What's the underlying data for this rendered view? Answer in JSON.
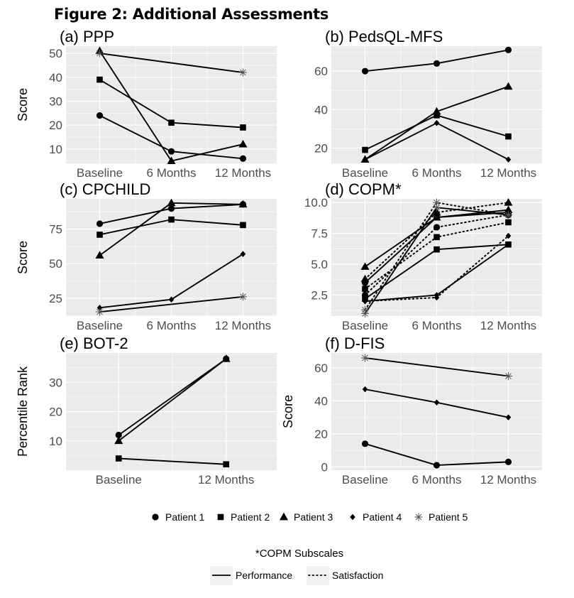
{
  "figure_title": "Figure 2: Additional Assessments",
  "legend": {
    "patients": [
      {
        "label": "Patient 1",
        "shape": "circle"
      },
      {
        "label": "Patient 2",
        "shape": "square"
      },
      {
        "label": "Patient 3",
        "shape": "triangle"
      },
      {
        "label": "Patient 4",
        "shape": "diamond"
      },
      {
        "label": "Patient 5",
        "shape": "asterisk"
      }
    ],
    "subscale_title": "*COPM Subscales",
    "subscales": [
      {
        "label": "Performance",
        "style": "solid"
      },
      {
        "label": "Satisfaction",
        "style": "dotted"
      }
    ]
  },
  "colors": {
    "panel_bg": "#ebebeb",
    "grid": "#ffffff",
    "ink": "#000000",
    "tick_text": "#4d4d4d"
  },
  "chart_data": [
    {
      "id": "a",
      "title": "(a) PPP",
      "type": "line",
      "ylabel": "Score",
      "x": [
        "Baseline",
        "6 Months",
        "12 Months"
      ],
      "yticks": [
        10,
        20,
        30,
        40,
        50
      ],
      "ylim": [
        4,
        53
      ],
      "minor_grid": true,
      "series": [
        {
          "name": "Patient 1",
          "shape": "circle",
          "points": [
            [
              "Baseline",
              24
            ],
            [
              "6 Months",
              9
            ],
            [
              "12 Months",
              6
            ]
          ]
        },
        {
          "name": "Patient 2",
          "shape": "square",
          "points": [
            [
              "Baseline",
              39
            ],
            [
              "6 Months",
              21
            ],
            [
              "12 Months",
              19
            ]
          ]
        },
        {
          "name": "Patient 3",
          "shape": "triangle",
          "points": [
            [
              "Baseline",
              51
            ],
            [
              "6 Months",
              5
            ],
            [
              "12 Months",
              12
            ]
          ]
        },
        {
          "name": "Patient 5",
          "shape": "asterisk",
          "points": [
            [
              "Baseline",
              50
            ],
            [
              "12 Months",
              42
            ]
          ]
        }
      ]
    },
    {
      "id": "b",
      "title": "(b) PedsQL-MFS",
      "type": "line",
      "ylabel": "",
      "x": [
        "Baseline",
        "6 Months",
        "12 Months"
      ],
      "yticks": [
        20,
        40,
        60
      ],
      "ylim": [
        12,
        73
      ],
      "minor_grid": true,
      "series": [
        {
          "name": "Patient 1",
          "shape": "circle",
          "points": [
            [
              "Baseline",
              60
            ],
            [
              "6 Months",
              64
            ],
            [
              "12 Months",
              71
            ]
          ]
        },
        {
          "name": "Patient 2",
          "shape": "square",
          "points": [
            [
              "Baseline",
              19
            ],
            [
              "6 Months",
              37
            ],
            [
              "12 Months",
              26
            ]
          ]
        },
        {
          "name": "Patient 3",
          "shape": "triangle",
          "points": [
            [
              "Baseline",
              14
            ],
            [
              "6 Months",
              39
            ],
            [
              "12 Months",
              52
            ]
          ]
        },
        {
          "name": "Patient 4",
          "shape": "diamond",
          "points": [
            [
              "Baseline",
              14
            ],
            [
              "6 Months",
              33
            ],
            [
              "12 Months",
              14
            ]
          ]
        }
      ]
    },
    {
      "id": "c",
      "title": "(c) CPCHILD",
      "type": "line",
      "ylabel": "Score",
      "x": [
        "Baseline",
        "6 Months",
        "12 Months"
      ],
      "yticks": [
        25,
        50,
        75
      ],
      "ylim": [
        12,
        97
      ],
      "minor_grid": true,
      "series": [
        {
          "name": "Patient 1",
          "shape": "circle",
          "points": [
            [
              "Baseline",
              79
            ],
            [
              "6 Months",
              90
            ],
            [
              "12 Months",
              93
            ]
          ]
        },
        {
          "name": "Patient 2",
          "shape": "square",
          "points": [
            [
              "Baseline",
              71
            ],
            [
              "6 Months",
              82
            ],
            [
              "12 Months",
              78
            ]
          ]
        },
        {
          "name": "Patient 3",
          "shape": "triangle",
          "points": [
            [
              "Baseline",
              56
            ],
            [
              "6 Months",
              94
            ],
            [
              "12 Months",
              93
            ]
          ]
        },
        {
          "name": "Patient 4",
          "shape": "diamond",
          "points": [
            [
              "Baseline",
              18
            ],
            [
              "6 Months",
              24
            ],
            [
              "12 Months",
              57
            ]
          ]
        },
        {
          "name": "Patient 5",
          "shape": "asterisk",
          "points": [
            [
              "Baseline",
              15
            ],
            [
              "12 Months",
              26
            ]
          ]
        }
      ]
    },
    {
      "id": "d",
      "title": "(d) COPM*",
      "type": "line",
      "ylabel": "",
      "x": [
        "Baseline",
        "6 Months",
        "12 Months"
      ],
      "yticks": [
        2.5,
        5.0,
        7.5,
        10.0
      ],
      "ytick_labels": [
        "2.5",
        "5.0",
        "7.5",
        "10.0"
      ],
      "ylim": [
        0.8,
        10.3
      ],
      "minor_grid": true,
      "series": [
        {
          "name": "Patient 1",
          "shape": "circle",
          "style": "solid",
          "points": [
            [
              "Baseline",
              3.5
            ],
            [
              "6 Months",
              8.8
            ],
            [
              "12 Months",
              9.2
            ]
          ]
        },
        {
          "name": "Patient 1",
          "shape": "circle",
          "style": "dotted",
          "points": [
            [
              "Baseline",
              2.5
            ],
            [
              "6 Months",
              8.0
            ],
            [
              "12 Months",
              9.0
            ]
          ]
        },
        {
          "name": "Patient 2",
          "shape": "square",
          "style": "solid",
          "points": [
            [
              "Baseline",
              2.2
            ],
            [
              "6 Months",
              6.2
            ],
            [
              "12 Months",
              6.6
            ]
          ]
        },
        {
          "name": "Patient 2",
          "shape": "square",
          "style": "dotted",
          "points": [
            [
              "Baseline",
              3.0
            ],
            [
              "6 Months",
              7.2
            ],
            [
              "12 Months",
              8.4
            ]
          ]
        },
        {
          "name": "Patient 3",
          "shape": "triangle",
          "style": "solid",
          "points": [
            [
              "Baseline",
              4.8
            ],
            [
              "6 Months",
              8.8
            ],
            [
              "12 Months",
              9.4
            ]
          ]
        },
        {
          "name": "Patient 3",
          "shape": "triangle",
          "style": "dotted",
          "points": [
            [
              "Baseline",
              3.8
            ],
            [
              "6 Months",
              9.2
            ],
            [
              "12 Months",
              10.0
            ]
          ]
        },
        {
          "name": "Patient 4",
          "shape": "diamond",
          "style": "solid",
          "points": [
            [
              "Baseline",
              2.0
            ],
            [
              "6 Months",
              2.5
            ],
            [
              "12 Months",
              6.6
            ]
          ]
        },
        {
          "name": "Patient 4",
          "shape": "diamond",
          "style": "dotted",
          "points": [
            [
              "Baseline",
              2.0
            ],
            [
              "6 Months",
              2.3
            ],
            [
              "12 Months",
              7.3
            ]
          ]
        },
        {
          "name": "Patient 5",
          "shape": "asterisk",
          "style": "solid",
          "points": [
            [
              "Baseline",
              1.0
            ],
            [
              "6 Months",
              9.6
            ],
            [
              "12 Months",
              9.0
            ]
          ]
        },
        {
          "name": "Patient 5",
          "shape": "asterisk",
          "style": "dotted",
          "points": [
            [
              "Baseline",
              1.3
            ],
            [
              "6 Months",
              10.0
            ],
            [
              "12 Months",
              9.0
            ]
          ]
        }
      ]
    },
    {
      "id": "e",
      "title": "(e) BOT-2",
      "type": "line",
      "ylabel": "Percentile Rank",
      "x": [
        "Baseline",
        "12 Months"
      ],
      "yticks": [
        10,
        20,
        30
      ],
      "ylim": [
        0,
        40
      ],
      "minor_grid": true,
      "series": [
        {
          "name": "Patient 1",
          "shape": "circle",
          "points": [
            [
              "Baseline",
              12
            ],
            [
              "12 Months",
              38
            ]
          ]
        },
        {
          "name": "Patient 2",
          "shape": "square",
          "points": [
            [
              "Baseline",
              4
            ],
            [
              "12 Months",
              2
            ]
          ]
        },
        {
          "name": "Patient 3",
          "shape": "triangle",
          "points": [
            [
              "Baseline",
              10
            ],
            [
              "12 Months",
              38
            ]
          ]
        }
      ]
    },
    {
      "id": "f",
      "title": "(f) D-FIS",
      "type": "line",
      "ylabel": "Score",
      "x": [
        "Baseline",
        "6 Months",
        "12 Months"
      ],
      "yticks": [
        0,
        20,
        40,
        60
      ],
      "ylim": [
        -2,
        69
      ],
      "minor_grid": true,
      "series": [
        {
          "name": "Patient 1",
          "shape": "circle",
          "points": [
            [
              "Baseline",
              14
            ],
            [
              "6 Months",
              1
            ],
            [
              "12 Months",
              3
            ]
          ]
        },
        {
          "name": "Patient 4",
          "shape": "diamond",
          "points": [
            [
              "Baseline",
              47
            ],
            [
              "6 Months",
              39
            ],
            [
              "12 Months",
              30
            ]
          ]
        },
        {
          "name": "Patient 5",
          "shape": "asterisk",
          "points": [
            [
              "Baseline",
              66
            ],
            [
              "12 Months",
              55
            ]
          ]
        }
      ]
    }
  ]
}
